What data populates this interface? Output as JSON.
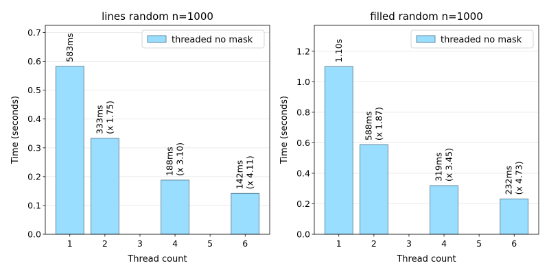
{
  "chart_data": [
    {
      "type": "bar",
      "title": "lines random n=1000",
      "xlabel": "Thread count",
      "ylabel": "Time (seconds)",
      "x_ticks": [
        "1",
        "2",
        "3",
        "4",
        "5",
        "6"
      ],
      "xlim": [
        0.3,
        6.7
      ],
      "ylim": [
        0,
        0.725
      ],
      "y_ticks": [
        "0.0",
        "0.1",
        "0.2",
        "0.3",
        "0.4",
        "0.5",
        "0.6",
        "0.7"
      ],
      "grid": "horizontal",
      "legend_position": "top-right",
      "bar_color": "#99ddff",
      "bar_edge_color": "#4d6f80",
      "series": [
        {
          "name": "threaded no mask",
          "x": [
            1,
            2,
            4,
            6
          ],
          "values": [
            0.583,
            0.333,
            0.188,
            0.142
          ],
          "labels": [
            [
              "583ms"
            ],
            [
              "333ms",
              "(x 1.75)"
            ],
            [
              "188ms",
              "(x 3.10)"
            ],
            [
              "142ms",
              "(x 4.11)"
            ]
          ]
        }
      ]
    },
    {
      "type": "bar",
      "title": "filled random n=1000",
      "xlabel": "Thread count",
      "ylabel": "Time (seconds)",
      "x_ticks": [
        "1",
        "2",
        "3",
        "4",
        "5",
        "6"
      ],
      "xlim": [
        0.3,
        6.7
      ],
      "ylim": [
        0,
        1.37
      ],
      "y_ticks": [
        "0.0",
        "0.2",
        "0.4",
        "0.6",
        "0.8",
        "1.0",
        "1.2"
      ],
      "grid": "horizontal",
      "legend_position": "top-right",
      "bar_color": "#99ddff",
      "bar_edge_color": "#4d6f80",
      "series": [
        {
          "name": "threaded no mask",
          "x": [
            1,
            2,
            4,
            6
          ],
          "values": [
            1.1,
            0.588,
            0.319,
            0.232
          ],
          "labels": [
            [
              "1.10s"
            ],
            [
              "588ms",
              "(x 1.87)"
            ],
            [
              "319ms",
              "(x 3.45)"
            ],
            [
              "232ms",
              "(x 4.73)"
            ]
          ]
        }
      ]
    }
  ]
}
